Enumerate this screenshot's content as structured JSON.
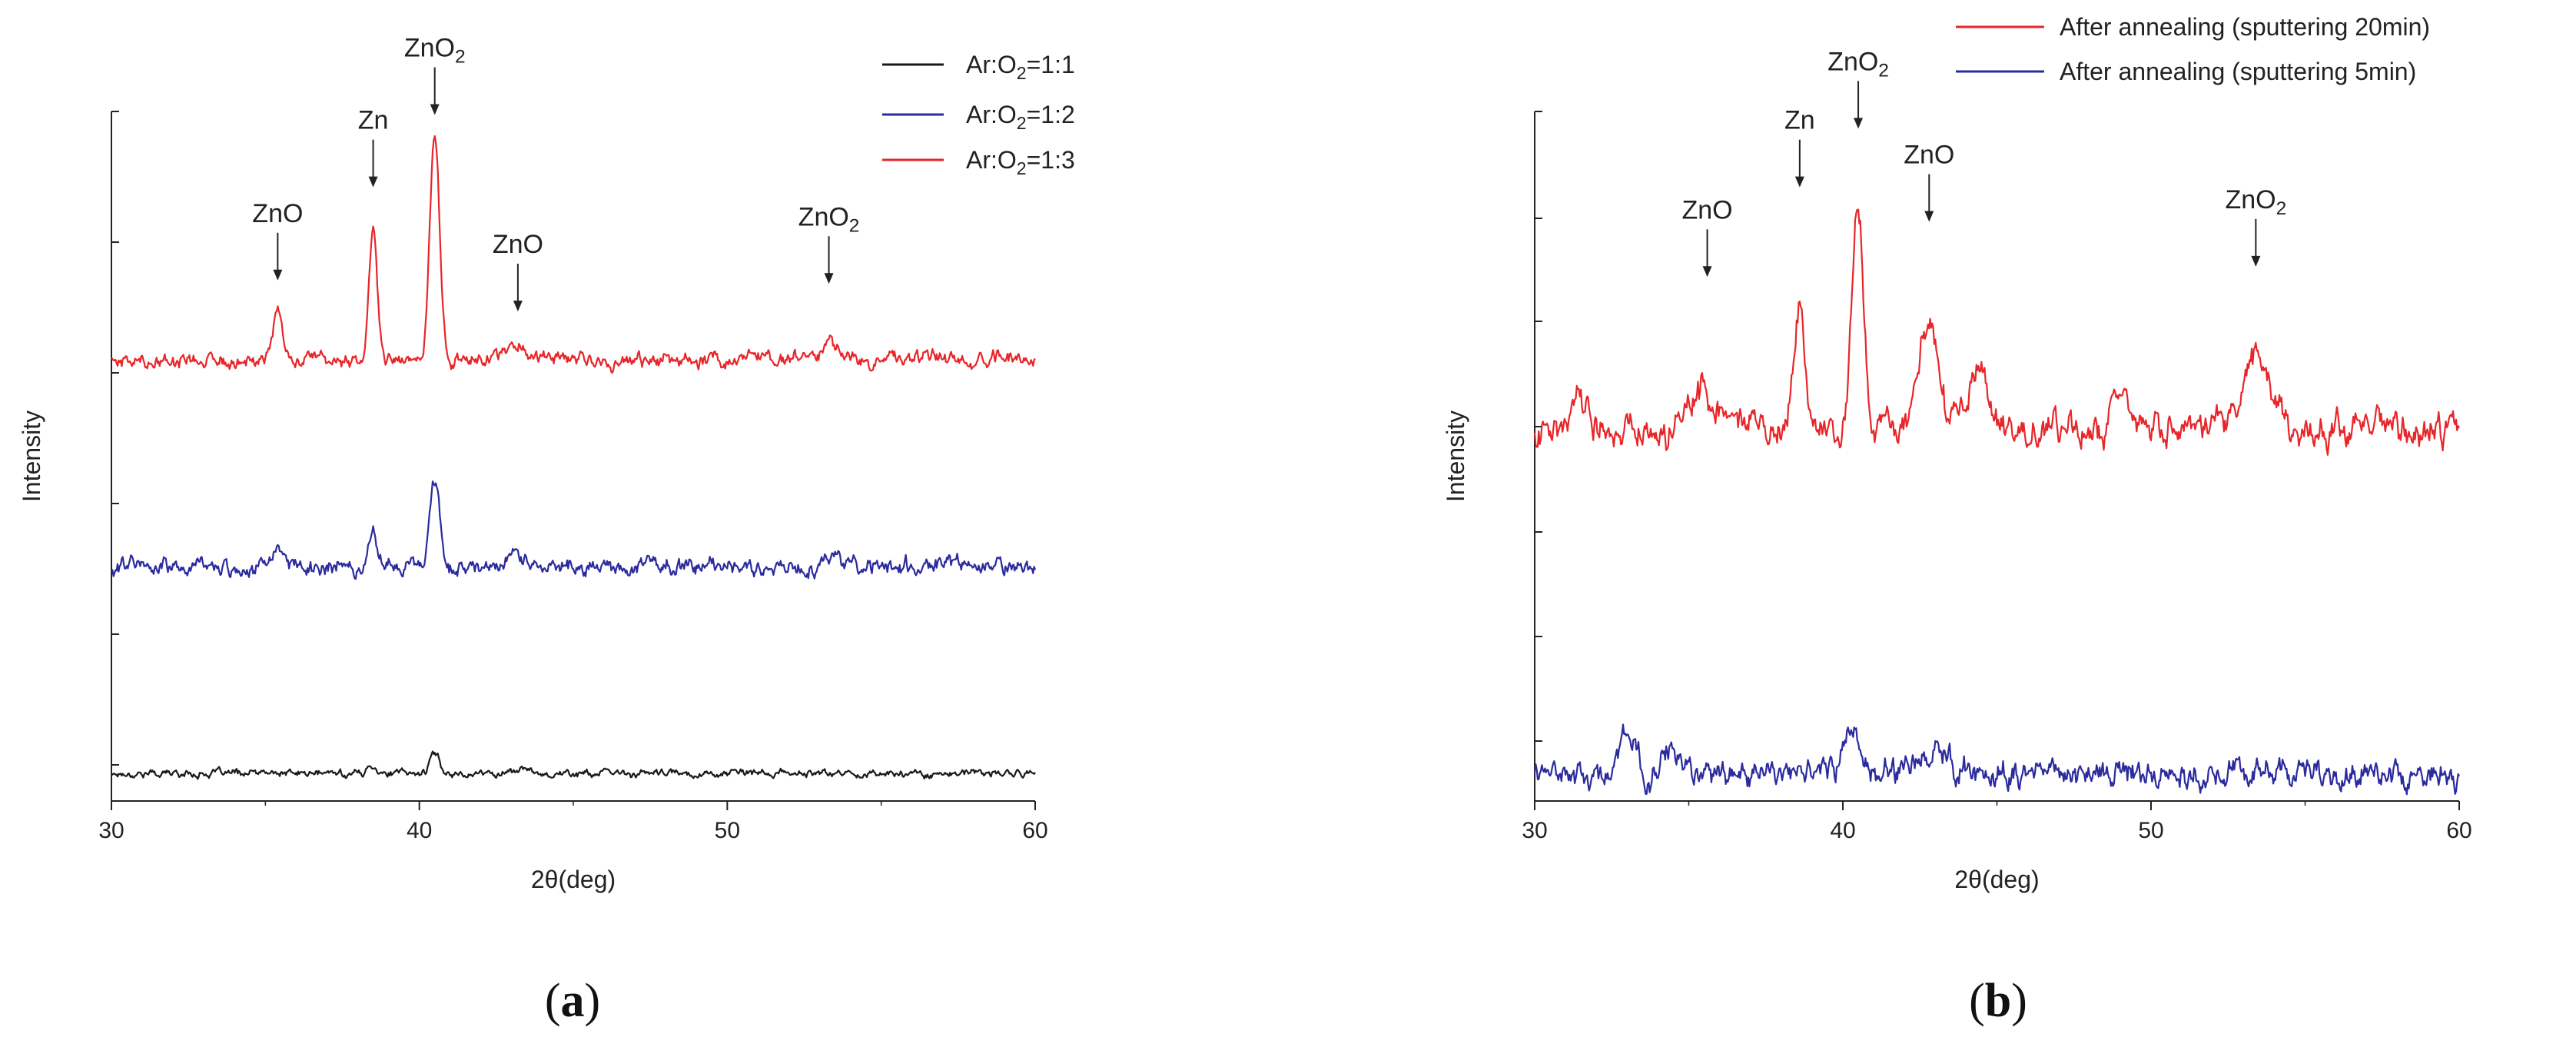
{
  "panels": [
    {
      "label_prefix": "(",
      "label_letter": "a",
      "label_suffix": ")"
    },
    {
      "label_prefix": "(",
      "label_letter": "b",
      "label_suffix": ")"
    }
  ],
  "chart_data": [
    {
      "type": "line",
      "xlabel": "2θ(deg)",
      "ylabel": "Intensity",
      "xlim": [
        30,
        60
      ],
      "x_ticks": [
        30,
        40,
        50,
        60
      ],
      "grid": false,
      "legend_position": "top-right",
      "series": [
        {
          "name": "Ar:O₂=1:1",
          "legend": {
            "pre": "Ar:O",
            "sub": "2",
            "post": "=1:1"
          },
          "color": "#1a1a1a",
          "baseline": 0.0,
          "noise_amplitude": 0.004,
          "peaks": [
            {
              "x": 38.5,
              "height": 0.012,
              "width": 0.15
            },
            {
              "x": 40.5,
              "height": 0.028,
              "width": 0.16
            },
            {
              "x": 43.3,
              "height": 0.006,
              "width": 0.3
            }
          ]
        },
        {
          "name": "Ar:O₂=1:2",
          "legend": {
            "pre": "Ar:O",
            "sub": "2",
            "post": "=1:2"
          },
          "color": "#2b2b9e",
          "baseline": 0.3,
          "noise_amplitude": 0.009,
          "peaks": [
            {
              "x": 35.3,
              "height": 0.025,
              "width": 0.18
            },
            {
              "x": 38.5,
              "height": 0.058,
              "width": 0.14
            },
            {
              "x": 40.5,
              "height": 0.128,
              "width": 0.16
            },
            {
              "x": 43.0,
              "height": 0.018,
              "width": 0.35
            },
            {
              "x": 53.4,
              "height": 0.015,
              "width": 0.3
            }
          ]
        },
        {
          "name": "Ar:O₂=1:3",
          "legend": {
            "pre": "Ar:O",
            "sub": "2",
            "post": "=1:3"
          },
          "color": "#e8262a",
          "baseline": 0.6,
          "noise_amplitude": 0.008,
          "peaks": [
            {
              "x": 35.4,
              "height": 0.07,
              "width": 0.15
            },
            {
              "x": 38.5,
              "height": 0.2,
              "width": 0.13
            },
            {
              "x": 40.5,
              "height": 0.325,
              "width": 0.16
            },
            {
              "x": 43.2,
              "height": 0.025,
              "width": 0.4
            },
            {
              "x": 53.3,
              "height": 0.035,
              "width": 0.18
            }
          ]
        }
      ],
      "annotations": [
        {
          "pre": "ZnO",
          "sub": "",
          "x": 35.4,
          "level": 0.715
        },
        {
          "pre": "Zn",
          "sub": "",
          "x": 38.5,
          "level": 0.85
        },
        {
          "pre": "ZnO",
          "sub": "2",
          "x": 40.5,
          "level": 0.955
        },
        {
          "pre": "ZnO",
          "sub": "",
          "x": 43.2,
          "level": 0.67
        },
        {
          "pre": "ZnO",
          "sub": "2",
          "x": 53.3,
          "level": 0.71
        }
      ]
    },
    {
      "type": "line",
      "xlabel": "2θ(deg)",
      "ylabel": "Intensity",
      "xlim": [
        30,
        60
      ],
      "x_ticks": [
        30,
        40,
        50,
        60
      ],
      "grid": false,
      "legend_position": "top-right",
      "series": [
        {
          "name": "After annealing (sputtering 20min)",
          "legend": {
            "pre": "After annealing (sputtering 20min)",
            "sub": "",
            "post": ""
          },
          "color": "#e8262a",
          "baseline": 0.5,
          "noise_amplitude": 0.018,
          "peaks": [
            {
              "x": 31.4,
              "height": 0.06,
              "width": 0.3
            },
            {
              "x": 35.5,
              "height": 0.05,
              "width": 0.5
            },
            {
              "x": 38.6,
              "height": 0.19,
              "width": 0.18
            },
            {
              "x": 40.5,
              "height": 0.33,
              "width": 0.18
            },
            {
              "x": 42.8,
              "height": 0.16,
              "width": 0.3
            },
            {
              "x": 44.4,
              "height": 0.08,
              "width": 0.35
            },
            {
              "x": 49.0,
              "height": 0.05,
              "width": 0.3
            },
            {
              "x": 53.4,
              "height": 0.11,
              "width": 0.45
            }
          ]
        },
        {
          "name": "After annealing (sputtering 5min)",
          "legend": {
            "pre": "After annealing (sputtering 5min)",
            "sub": "",
            "post": ""
          },
          "color": "#2b2b9e",
          "baseline": 0.0,
          "noise_amplitude": 0.015,
          "peaks": [
            {
              "x": 33.0,
              "height": 0.05,
              "width": 0.3
            },
            {
              "x": 34.6,
              "height": 0.04,
              "width": 0.3
            },
            {
              "x": 40.3,
              "height": 0.06,
              "width": 0.25
            },
            {
              "x": 43.0,
              "height": 0.035,
              "width": 0.3
            }
          ]
        }
      ],
      "annotations": [
        {
          "pre": "ZnO",
          "sub": "",
          "x": 35.6,
          "level": 0.72
        },
        {
          "pre": "Zn",
          "sub": "",
          "x": 38.6,
          "level": 0.85
        },
        {
          "pre": "ZnO",
          "sub": "2",
          "x": 40.5,
          "level": 0.935
        },
        {
          "pre": "ZnO",
          "sub": "",
          "x": 42.8,
          "level": 0.8
        },
        {
          "pre": "ZnO",
          "sub": "2",
          "x": 53.4,
          "level": 0.735
        }
      ]
    }
  ]
}
